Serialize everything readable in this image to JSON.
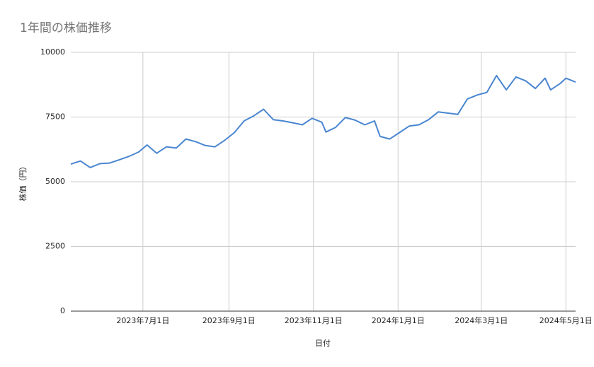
{
  "chart_data": {
    "type": "line",
    "title": "1年間の株価推移",
    "x_label": "日付",
    "y_label": "株価（円）",
    "x": [
      "2023-05-10",
      "2023-05-17",
      "2023-05-24",
      "2023-05-31",
      "2023-06-07",
      "2023-06-14",
      "2023-06-21",
      "2023-06-28",
      "2023-07-04",
      "2023-07-11",
      "2023-07-18",
      "2023-07-25",
      "2023-08-01",
      "2023-08-08",
      "2023-08-15",
      "2023-08-22",
      "2023-08-29",
      "2023-09-05",
      "2023-09-12",
      "2023-09-19",
      "2023-09-26",
      "2023-10-03",
      "2023-10-10",
      "2023-10-17",
      "2023-10-24",
      "2023-10-31",
      "2023-11-07",
      "2023-11-10",
      "2023-11-17",
      "2023-11-24",
      "2023-12-01",
      "2023-12-08",
      "2023-12-15",
      "2023-12-19",
      "2023-12-26",
      "2024-01-02",
      "2024-01-09",
      "2024-01-16",
      "2024-01-23",
      "2024-01-30",
      "2024-02-06",
      "2024-02-13",
      "2024-02-20",
      "2024-02-27",
      "2024-03-05",
      "2024-03-12",
      "2024-03-19",
      "2024-03-26",
      "2024-04-02",
      "2024-04-09",
      "2024-04-16",
      "2024-04-20",
      "2024-04-27",
      "2024-05-01",
      "2024-05-08"
    ],
    "series": [
      {
        "name": "株価",
        "color": "#4a86d0",
        "values": [
          5680,
          5800,
          5550,
          5700,
          5720,
          5850,
          5980,
          6150,
          6420,
          6100,
          6350,
          6300,
          6650,
          6550,
          6400,
          6350,
          6600,
          6900,
          7350,
          7550,
          7800,
          7400,
          7350,
          7280,
          7200,
          7450,
          7300,
          6920,
          7100,
          7480,
          7380,
          7200,
          7350,
          6750,
          6650,
          6900,
          7150,
          7200,
          7400,
          7700,
          7650,
          7600,
          8200,
          8350,
          8450,
          9100,
          8550,
          9050,
          8900,
          8600,
          9000,
          8550,
          8800,
          9000,
          8850
        ]
      }
    ],
    "xlim": [
      "2023-05-10",
      "2024-05-08"
    ],
    "xticks": [
      {
        "value": "2023-07-01",
        "label": "2023年7月1日"
      },
      {
        "value": "2023-09-01",
        "label": "2023年9月1日"
      },
      {
        "value": "2023-11-01",
        "label": "2023年11月1日"
      },
      {
        "value": "2024-01-01",
        "label": "2024年1月1日"
      },
      {
        "value": "2024-03-01",
        "label": "2024年3月1日"
      },
      {
        "value": "2024-05-01",
        "label": "2024年5月1日"
      }
    ],
    "ylim": [
      0,
      10000
    ],
    "yticks": [
      0,
      2500,
      5000,
      7500,
      10000
    ],
    "grid": true
  }
}
